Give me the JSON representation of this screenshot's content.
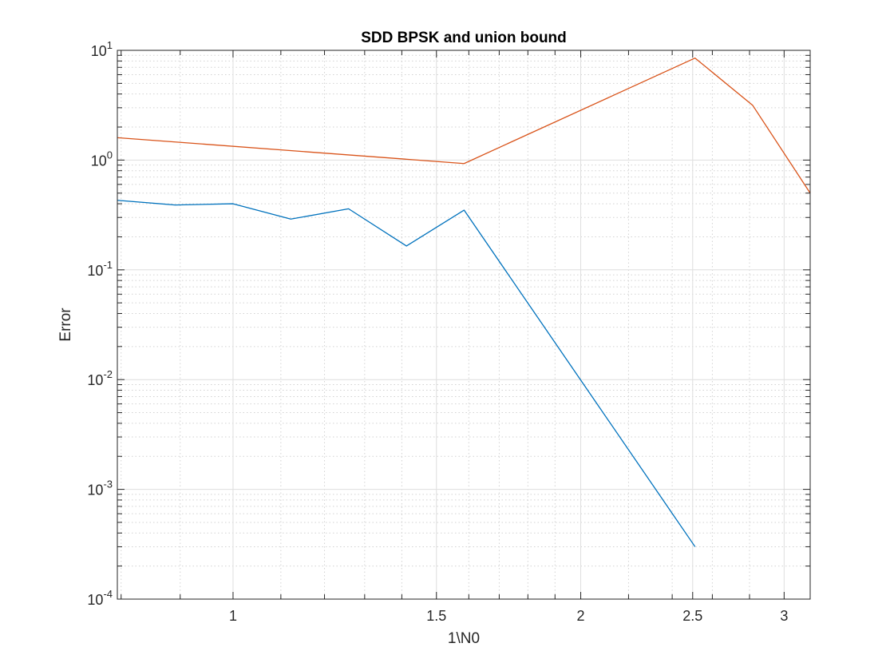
{
  "chart_data": {
    "type": "line",
    "title": "SDD BPSK and union bound",
    "xlabel": "1\\N0",
    "ylabel": "Error",
    "xscale": "log",
    "yscale": "log",
    "xlim": [
      0.794,
      3.16
    ],
    "ylim": [
      0.0001,
      10
    ],
    "xticks": [
      1,
      1.5,
      2,
      2.5,
      3
    ],
    "xtick_labels": [
      "1",
      "1.5",
      "2",
      "2.5",
      "3"
    ],
    "yticks": [
      0.0001,
      0.001,
      0.01,
      0.1,
      1,
      10
    ],
    "ytick_labels": [
      {
        "base": "10",
        "exp": "-4"
      },
      {
        "base": "10",
        "exp": "-3"
      },
      {
        "base": "10",
        "exp": "-2"
      },
      {
        "base": "10",
        "exp": "-1"
      },
      {
        "base": "10",
        "exp": "0"
      },
      {
        "base": "10",
        "exp": "1"
      }
    ],
    "grid": true,
    "minor_grid": true,
    "series": [
      {
        "color": "#0072BD",
        "x": [
          0.794,
          0.891,
          1.0,
          1.122,
          1.259,
          1.413,
          1.585,
          2.512
        ],
        "y": [
          0.43,
          0.39,
          0.4,
          0.29,
          0.36,
          0.165,
          0.35,
          0.0003
        ]
      },
      {
        "color": "#D95319",
        "x": [
          0.794,
          1.585,
          2.512,
          2.818,
          3.16
        ],
        "y": [
          1.6,
          0.93,
          8.5,
          3.15,
          0.5
        ]
      }
    ]
  }
}
